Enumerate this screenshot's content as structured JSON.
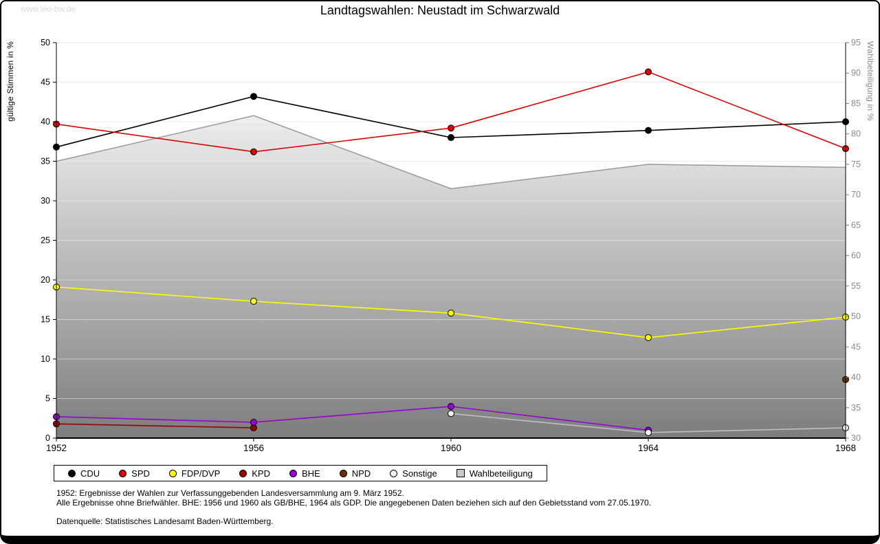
{
  "meta": {
    "watermark": "www.leo-bw.de",
    "title": "Landtagswahlen: Neustadt im Schwarzwald"
  },
  "footnotes": [
    "1952: Ergebnisse der Wahlen zur Verfassunggebenden Landesversammlung am 9. März 1952.",
    "Alle Ergebnisse ohne Briefwähler. BHE: 1956 und 1960 als GB/BHE, 1964 als GDP. Die angegebenen Daten beziehen sich auf den Gebietsstand vom 27.05.1970.",
    "Datenquelle: Statistisches Landesamt Baden-Württemberg."
  ],
  "chart_data": {
    "type": "line",
    "x": [
      1952,
      1956,
      1960,
      1964,
      1968
    ],
    "ylabel_left": "gültige Stimmen in %",
    "ylabel_right": "Wahlbeteiligung in %",
    "ylim_left": [
      0,
      50
    ],
    "ylim_right": [
      30,
      95
    ],
    "ytick_step": 5,
    "grid": true,
    "legend_position": "bottom",
    "series": [
      {
        "name": "CDU",
        "axis": "left",
        "color": "#000000",
        "values": [
          36.8,
          43.2,
          38.0,
          38.9,
          40.0
        ]
      },
      {
        "name": "SPD",
        "axis": "left",
        "color": "#dd0000",
        "values": [
          39.7,
          36.2,
          39.2,
          46.3,
          36.6
        ]
      },
      {
        "name": "FDP/DVP",
        "axis": "left",
        "color": "#ffff00",
        "values": [
          19.1,
          17.3,
          15.8,
          12.7,
          15.3
        ]
      },
      {
        "name": "KPD",
        "axis": "left",
        "color": "#990000",
        "values": [
          1.8,
          1.3,
          null,
          null,
          null
        ]
      },
      {
        "name": "BHE",
        "axis": "left",
        "color": "#9400d3",
        "values": [
          2.7,
          2.0,
          4.0,
          1.0,
          null
        ]
      },
      {
        "name": "NPD",
        "axis": "left",
        "color": "#663300",
        "values": [
          null,
          null,
          null,
          null,
          7.4
        ]
      },
      {
        "name": "Sonstige",
        "axis": "left",
        "color": "#c0c0c0",
        "marker_fill": "#f2f2f2",
        "values": [
          null,
          null,
          3.1,
          0.7,
          1.3
        ]
      },
      {
        "name": "Wahlbeteiligung",
        "axis": "right",
        "color": "#999999",
        "area": true,
        "marker_fill": "#c8c8c8",
        "values": [
          75.5,
          83.0,
          71.0,
          75.0,
          74.5
        ]
      }
    ]
  }
}
